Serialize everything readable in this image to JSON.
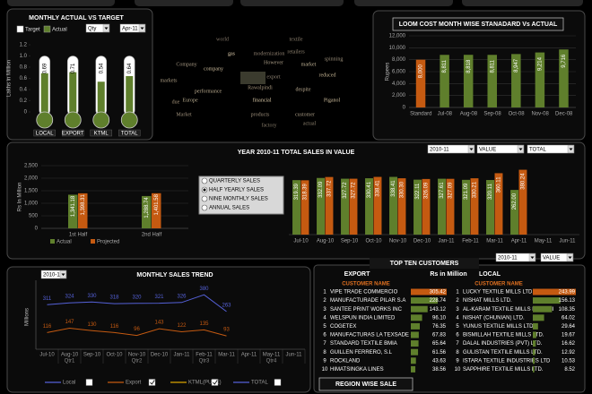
{
  "chart_data": [
    {
      "type": "thermometer",
      "title": "MONTHLY ACTUAL VS TARGET",
      "y_label": "Lakhs in Million",
      "categories": [
        "LOCAL",
        "EXPORT",
        "KTML",
        "TOTAL"
      ],
      "series": [
        {
          "name": "Target",
          "color": "#ffffff",
          "values": [
            1,
            1,
            1,
            1
          ]
        },
        {
          "name": "Actual",
          "color": "#5f7f2c",
          "values": [
            0.69,
            0.71,
            0.54,
            0.64
          ]
        }
      ],
      "ylim": [
        0,
        1.2
      ],
      "yticks": [
        0,
        0.2,
        0.4,
        0.6,
        0.8,
        {
          "value": 1,
          "label": "1.0"
        },
        1.2
      ]
    },
    {
      "type": "bar",
      "title": "LOOM COST MONTH WISE STANADARD Vs ACTUAL",
      "y_label": "Rupees",
      "categories": [
        "Standard",
        "Jul-08",
        "Aug-08",
        "Sep-08",
        "Oct-08",
        "Nov-08",
        "Dec-08"
      ],
      "values": [
        8000,
        8811,
        8818,
        8811,
        8947,
        9214,
        9716
      ],
      "value_labels": [
        "8,000",
        "8,811",
        "8,818",
        "8,811",
        "8,947",
        "9,214",
        "9,716"
      ],
      "colors": [
        "#c55a11",
        "#5f7f2c",
        "#5f7f2c",
        "#5f7f2c",
        "#5f7f2c",
        "#5f7f2c",
        "#5f7f2c"
      ],
      "ylim": [
        0,
        12000
      ],
      "yticks": [
        0,
        {
          "value": 2000,
          "label": "2,000"
        },
        {
          "value": 4000,
          "label": "4,000"
        },
        {
          "value": 6000,
          "label": "6,000"
        },
        {
          "value": 8000,
          "label": "8,000"
        },
        {
          "value": 10000,
          "label": "10,000"
        },
        {
          "value": 12000,
          "label": "12,000"
        }
      ],
      "grid": true
    },
    {
      "type": "bar",
      "y_label": "Rs In Million",
      "categories": [
        "1st Half",
        "2nd Half"
      ],
      "series": [
        {
          "name": "Actual",
          "color": "#5f7f2c",
          "values": [
            1341.18,
            1288.74
          ],
          "value_labels": [
            "1,341.18",
            "1,288.74"
          ]
        },
        {
          "name": "Projected",
          "color": "#c55a11",
          "values": [
            1398.31,
            1401.58
          ],
          "value_labels": [
            "1,398.31",
            "1,401.58"
          ]
        }
      ],
      "ylim": [
        0,
        2500
      ],
      "yticks": [
        0,
        500,
        {
          "value": 1000,
          "label": "1,000"
        },
        {
          "value": 1500,
          "label": "1,500"
        },
        {
          "value": 2000,
          "label": "2,000"
        },
        {
          "value": 2500,
          "label": "2,500"
        }
      ],
      "grid": true
    },
    {
      "type": "bar",
      "title": "YEAR 2010-11 TOTAL SALES IN VALUE",
      "categories": [
        "Jul-10",
        "Aug-10",
        "Sep-10",
        "Oct-10",
        "Nov-10",
        "Dec-10",
        "Jan-11",
        "Feb-11",
        "Mar-11",
        "Apr-11",
        "May-11",
        "Jun-11"
      ],
      "series": [
        {
          "color": "#5f7f2c",
          "values": [
            319.39,
            332.09,
            327.72,
            330.41,
            338.41,
            322.11,
            327.61,
            321.09,
            320.11,
            262,
            null,
            null
          ],
          "value_labels": [
            "319.39",
            "332.09",
            "327.72",
            "330.41",
            "338.41",
            "322.11",
            "327.61",
            "321.09",
            "320.11",
            "262.00",
            null,
            null
          ]
        },
        {
          "color": "#c55a11",
          "values": [
            318.39,
            337.72,
            327.72,
            338.41,
            330.3,
            326.09,
            327.09,
            330.21,
            360.11,
            380.24,
            null,
            null
          ],
          "value_labels": [
            "318.39",
            "337.72",
            "327.72",
            "338.41",
            "330.30",
            "326.09",
            "327.09",
            "330.21",
            "360.11",
            "380.24",
            null,
            null
          ]
        }
      ],
      "ylim": [
        0,
        420
      ]
    },
    {
      "type": "line",
      "title": "MONTHLY SALES TREND",
      "y_label": "Millions",
      "categories": [
        "Jul-10",
        "Aug-10",
        "Sep-10",
        "Oct-10",
        "Nov-10",
        "Dec-10",
        "Jan-11",
        "Feb-11",
        "Mar-11",
        "Apr-11",
        "May-11",
        "Jun-11"
      ],
      "groups": [
        "Qtr1",
        "Qtr2",
        "Qtr3",
        "Qtr4"
      ],
      "series": [
        {
          "name": "Local",
          "color": "#5561d8",
          "checked": false,
          "values": [
            311,
            324,
            330,
            318,
            320,
            321,
            326,
            380,
            263,
            null,
            null,
            null
          ]
        },
        {
          "name": "Export",
          "color": "#c55a11",
          "checked": true,
          "values": [
            116,
            147,
            130,
            116,
            96,
            143,
            122,
            135,
            93,
            null,
            null,
            null
          ]
        },
        {
          "name": "KTML(PUNE)",
          "color": "#d9a300",
          "checked": true,
          "values": [
            null,
            null,
            null,
            null,
            null,
            null,
            null,
            null,
            null,
            null,
            null,
            null
          ]
        },
        {
          "name": "TOTAL",
          "color": "#5561d8",
          "checked": false,
          "values": [
            null,
            null,
            null,
            null,
            null,
            null,
            null,
            null,
            null,
            null,
            null,
            null
          ]
        }
      ],
      "ylim": [
        0,
        450
      ]
    }
  ],
  "controls": {
    "thermo": [
      "Qty",
      "Apr-11"
    ],
    "sales": [
      "2010-11",
      "VALUE",
      "TOTAL"
    ],
    "trend": [
      "2010-11"
    ],
    "customers": [
      "2010-11",
      "VALUE"
    ]
  },
  "sales_options": {
    "options": [
      "QUARTERLY SALES",
      "HALF YEARLY SALES",
      "NINE MONTHLY SALES",
      "ANNUAL SALES"
    ],
    "selected": 1
  },
  "word_cloud": {
    "words": [
      "gas",
      "company",
      "markets",
      "export",
      "Europe",
      "financial",
      "Piganol",
      "performance",
      "reduced",
      "Rawalpindi",
      "modernization",
      "Company",
      "Market",
      "textile",
      "world",
      "products",
      "customer",
      "actual",
      "despite",
      "spinning",
      "However",
      "market",
      "due",
      "retailers",
      "factory"
    ]
  },
  "customers": {
    "title": "TOP TEN CUSTOMERS",
    "unit": "Rs in Million",
    "color": "#5f7f2c",
    "highlight_color": "#c55a11",
    "export": {
      "heading": "EXPORT",
      "column": "CUSTOMER NAME",
      "rows": [
        [
          1,
          "VIPE TRADE COMMERCIO",
          "305.42"
        ],
        [
          2,
          "MANUFACTURADE PILAR S.A",
          "228.74"
        ],
        [
          3,
          "SANTEE PRINT WORKS INC",
          "143.12"
        ],
        [
          4,
          "WELSPUN INDIA LIMITED",
          "96.10"
        ],
        [
          5,
          "COGETEX",
          "76.35"
        ],
        [
          6,
          "MANUFACTURAS LA TEXSADE CV",
          "67.83"
        ],
        [
          7,
          "STANDARD TEXTILE BMIA",
          "65.64"
        ],
        [
          8,
          "GUILLEN FERRERO, S.L",
          "61.56"
        ],
        [
          9,
          "ROCKLAND",
          "43.63"
        ],
        [
          10,
          "HIMATSINGKA LINES",
          "38.56"
        ]
      ]
    },
    "local": {
      "heading": "LOCAL",
      "column": "CUSTOMER NAME",
      "rows": [
        [
          1,
          "LUCKY TEXTILE MILLS LTD.",
          "243.99"
        ],
        [
          2,
          "NISHAT MILLS LTD.",
          "156.13"
        ],
        [
          3,
          "AL-KARAM TEXTILE MILLS LTD. KHI",
          "108.35"
        ],
        [
          4,
          "NISHAT (CHUNIAN) LTD.",
          "64.02"
        ],
        [
          5,
          "YUNUS TEXTILE MILLS LTD.",
          "29.64"
        ],
        [
          6,
          "BISMILLAH TEXTILE MILLS LTD.",
          "19.67"
        ],
        [
          7,
          "DALAL INDUSTRIES (PVT) LTD.",
          "16.62"
        ],
        [
          8,
          "GULISTAN TEXTILE MILLS LTD.",
          "12.92"
        ],
        [
          9,
          "ISTARA TEXTILE INDUSTRIES LTD",
          "10.53"
        ],
        [
          10,
          "SAPPHIRE TEXTILE MILLS LTD.",
          "8.52"
        ]
      ]
    }
  },
  "region_title": "REGION WISE SALE"
}
